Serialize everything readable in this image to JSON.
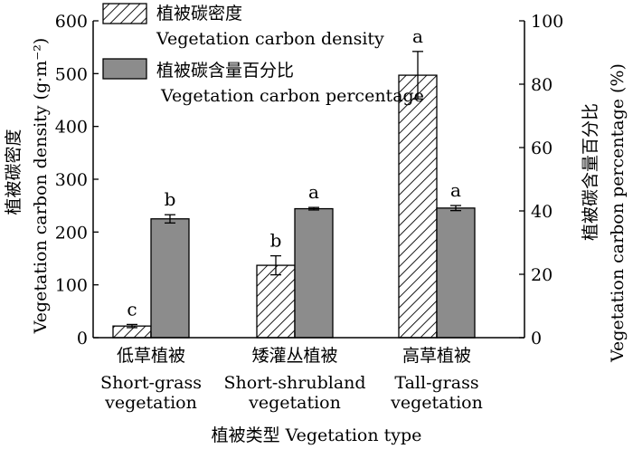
{
  "chart_data": {
    "type": "bar",
    "categories": [
      {
        "zh": "低草植被",
        "en": [
          "Short-grass",
          "vegetation"
        ]
      },
      {
        "zh": "矮灌丛植被",
        "en": [
          "Short-shrubland",
          "vegetation"
        ]
      },
      {
        "zh": "高草植被",
        "en": [
          "Tall-grass",
          "vegetation"
        ]
      }
    ],
    "series": [
      {
        "name_zh": "植被碳密度",
        "name_en": "Vegetation carbon density",
        "axis": "left",
        "pattern": "hatch",
        "values": [
          22,
          137,
          497
        ],
        "errors": [
          3,
          18,
          45
        ],
        "letters": [
          "c",
          "b",
          "a"
        ]
      },
      {
        "name_zh": "植被碳含量百分比",
        "name_en": "Vegetation carbon percentage",
        "axis": "right",
        "pattern": "solid-gray",
        "values": [
          37.5,
          40.7,
          40.9
        ],
        "errors": [
          1.3,
          0.4,
          0.8
        ],
        "letters": [
          "b",
          "a",
          "a"
        ]
      }
    ],
    "y_left": {
      "label_zh": "植被碳密度",
      "label_en": "Vegetation carbon density (g·m⁻²)",
      "lim": [
        0,
        600
      ],
      "ticks": [
        0,
        100,
        200,
        300,
        400,
        500,
        600
      ]
    },
    "y_right": {
      "label_zh": "植被碳含量百分比",
      "label_en": "Vegetation carbon percentage (%)",
      "lim": [
        0,
        100
      ],
      "ticks": [
        0,
        20,
        40,
        60,
        80,
        100
      ]
    },
    "xlabel": "植被类型 Vegetation type",
    "legend_position": "top-left",
    "grid": false,
    "colors": {
      "solid_bar": "#8c8c8c",
      "outline": "#000000"
    }
  }
}
